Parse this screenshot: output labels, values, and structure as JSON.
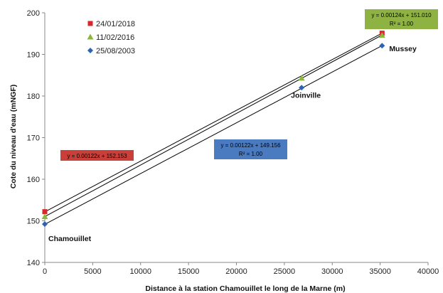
{
  "chart_data": {
    "type": "scatter",
    "title": "",
    "xlabel": "Distance à la station Chamouillet le long de la Marne (m)",
    "ylabel": "Cote du niveau d'eau (mNGF)",
    "xlim": [
      0,
      40000
    ],
    "ylim": [
      140,
      200
    ],
    "x_ticks": [
      0,
      5000,
      10000,
      15000,
      20000,
      25000,
      30000,
      35000,
      40000
    ],
    "y_ticks": [
      140,
      150,
      160,
      170,
      180,
      190,
      200
    ],
    "grid": false,
    "legend_position": "top-left",
    "series": [
      {
        "name": "24/01/2018",
        "marker": "square",
        "color": "#d9262b",
        "x": [
          0,
          35200
        ],
        "y": [
          152.2,
          195.1
        ],
        "trendline": {
          "slope": 0.00122,
          "intercept": 152.153,
          "label": "y = 0.00122x + 152.153",
          "r2": "",
          "label_bg": "#c9403a"
        }
      },
      {
        "name": "11/02/2016",
        "marker": "triangle",
        "color": "#8ab83a",
        "x": [
          0,
          26800,
          35200
        ],
        "y": [
          151.0,
          184.3,
          194.6
        ],
        "trendline": {
          "slope": 0.00124,
          "intercept": 151.01,
          "label": "y = 0.00124x + 151.010",
          "r2": "R² = 1.00",
          "label_bg": "#8fb342"
        }
      },
      {
        "name": "25/08/2003",
        "marker": "diamond",
        "color": "#2c63b5",
        "x": [
          0,
          26800,
          35200
        ],
        "y": [
          149.2,
          182.0,
          192.1
        ],
        "trendline": {
          "slope": 0.00122,
          "intercept": 149.156,
          "label": "y = 0.00122x + 149.156",
          "r2": "R² = 1.00",
          "label_bg": "#4a7bc1"
        }
      }
    ],
    "annotations": [
      {
        "text": "Chamouillet",
        "x": 0,
        "y": 149.2
      },
      {
        "text": "Joinville",
        "x": 26800,
        "y": 182.0
      },
      {
        "text": "Mussey",
        "x": 35200,
        "y": 192.1
      }
    ]
  }
}
